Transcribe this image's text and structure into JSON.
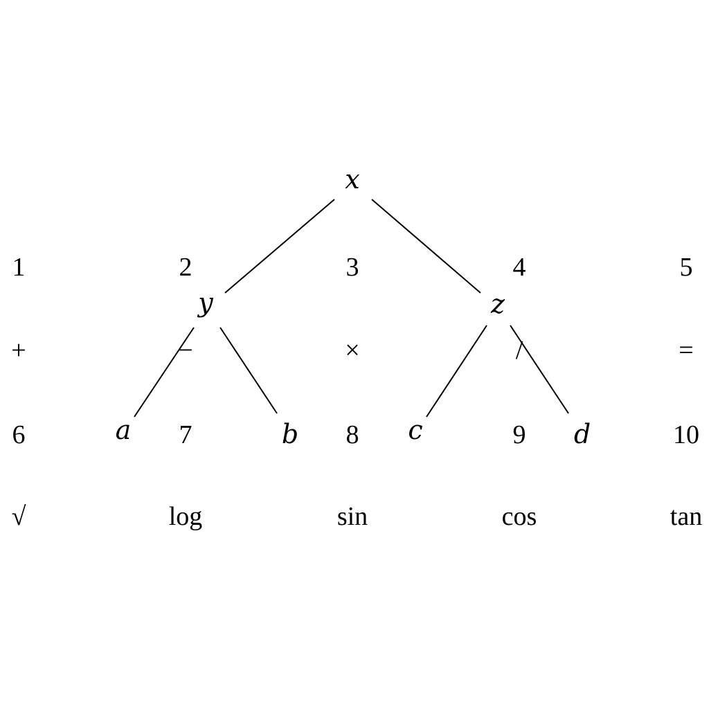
{
  "tree": {
    "nodes": [
      {
        "id": "x",
        "label": "x"
      },
      {
        "id": "y",
        "label": "y"
      },
      {
        "id": "z",
        "label": "z"
      },
      {
        "id": "a",
        "label": "a"
      },
      {
        "id": "b",
        "label": "b"
      },
      {
        "id": "c",
        "label": "c"
      },
      {
        "id": "d",
        "label": "d"
      }
    ],
    "edges": [
      {
        "from": "x",
        "to": "y"
      },
      {
        "from": "x",
        "to": "z"
      },
      {
        "from": "y",
        "to": "a"
      },
      {
        "from": "y",
        "to": "b"
      },
      {
        "from": "z",
        "to": "c"
      },
      {
        "from": "z",
        "to": "d"
      }
    ]
  },
  "grid": {
    "rows": [
      [
        "1",
        "2",
        "3",
        "4",
        "5"
      ],
      [
        "+",
        "−",
        "×",
        "/",
        "="
      ],
      [
        "6",
        "7",
        "8",
        "9",
        "10"
      ],
      [
        "√",
        "log",
        "sin",
        "cos",
        "tan"
      ]
    ]
  }
}
